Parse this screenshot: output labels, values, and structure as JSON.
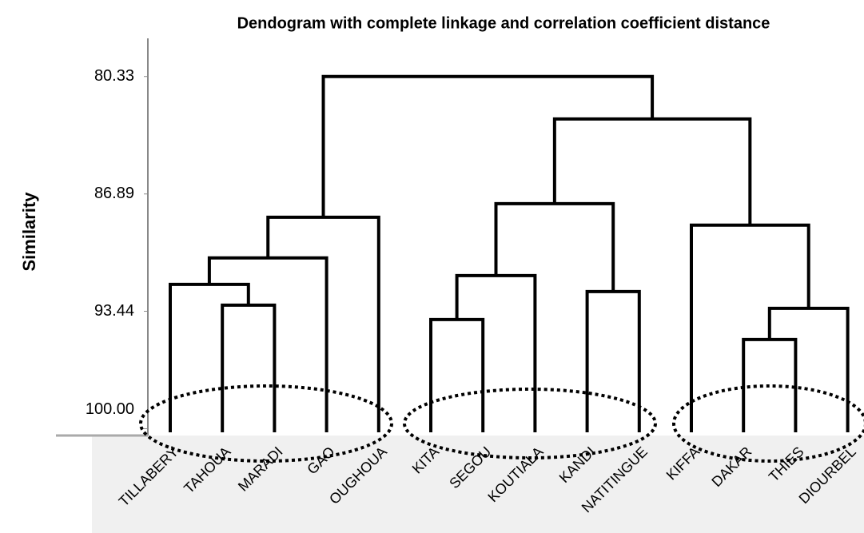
{
  "chart_data": {
    "type": "dendrogram",
    "title": "Dendogram with complete linkage and correlation coefficient distance",
    "y_label": "Similarity",
    "leaves": [
      "TILLABERY",
      "TAHOUA",
      "MARADI",
      "GAO",
      "OUGHOUA",
      "KITA",
      "SEGOU",
      "KOUTIALA",
      "KANDI",
      "NATITINGUE",
      "KIFFA",
      "DAKAR",
      "THIES",
      "DIOURBEL"
    ],
    "merges": [
      {
        "left": 1,
        "right": 2,
        "height": 93.1
      },
      {
        "left": 0,
        "right": 14,
        "height": 91.94
      },
      {
        "left": 15,
        "right": 3,
        "height": 90.46
      },
      {
        "left": 16,
        "right": 4,
        "height": 88.19
      },
      {
        "left": 5,
        "right": 6,
        "height": 93.9
      },
      {
        "left": 18,
        "right": 7,
        "height": 91.45
      },
      {
        "left": 8,
        "right": 9,
        "height": 92.34
      },
      {
        "left": 19,
        "right": 20,
        "height": 87.43
      },
      {
        "left": 11,
        "right": 12,
        "height": 95.02
      },
      {
        "left": 22,
        "right": 13,
        "height": 93.28
      },
      {
        "left": 10,
        "right": 23,
        "height": 88.63
      },
      {
        "left": 21,
        "right": 24,
        "height": 82.7
      },
      {
        "left": 17,
        "right": 25,
        "height": 80.33
      }
    ],
    "ylim": [
      100.2,
      78.2
    ],
    "yticks": [
      80.33,
      86.89,
      93.44,
      {
        "value": 100,
        "label": "100.00"
      }
    ],
    "color": "#000000"
  }
}
